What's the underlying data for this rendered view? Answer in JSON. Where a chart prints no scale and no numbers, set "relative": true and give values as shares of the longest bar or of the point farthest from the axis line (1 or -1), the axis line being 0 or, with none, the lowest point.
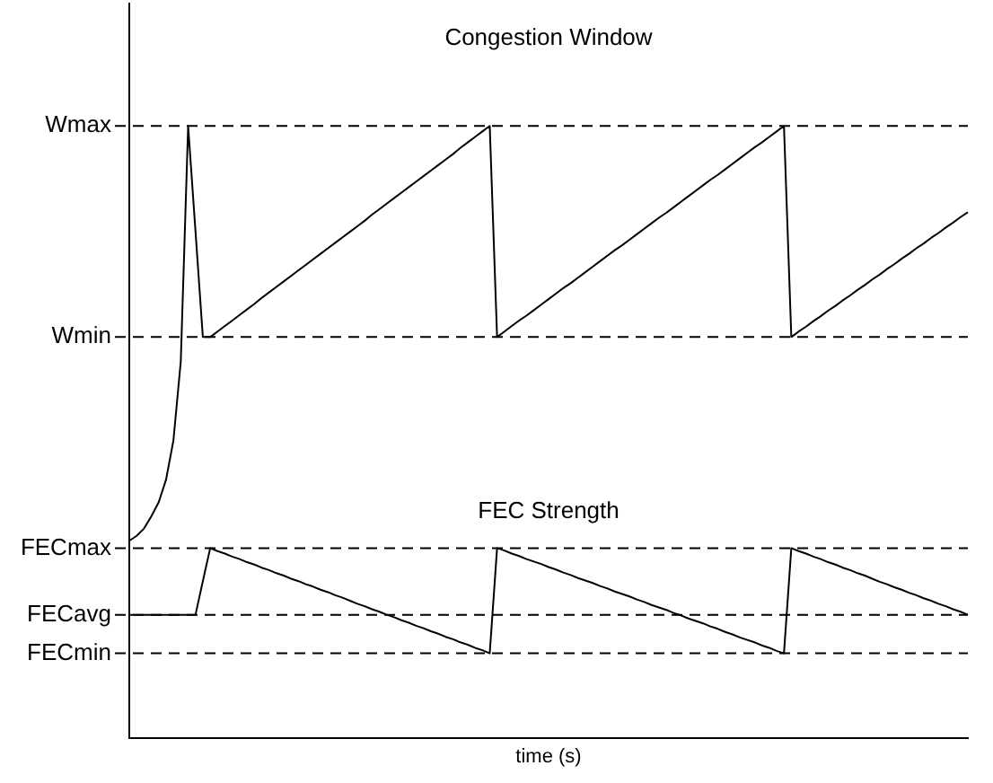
{
  "chart_data": {
    "type": "line",
    "relative": true,
    "title": "Congestion Window",
    "annotations": [
      "FEC Strength"
    ],
    "xlabel": "time (s)",
    "legend": false,
    "grid": false,
    "marker": "none",
    "line_style": "solid",
    "tick_labels": false,
    "categories": [
      null,
      null,
      null,
      null,
      null,
      null,
      null,
      null,
      null,
      null,
      null,
      null,
      null,
      null,
      null,
      null,
      null,
      null,
      null,
      null,
      null,
      null,
      null,
      null,
      null,
      null,
      null,
      null,
      null,
      null,
      null,
      null,
      null,
      null,
      null,
      null,
      null,
      null,
      null,
      null,
      null,
      null,
      null,
      null,
      null,
      null,
      null,
      null,
      null,
      null,
      null,
      null,
      null,
      null,
      null,
      null,
      null,
      null,
      null,
      null,
      null,
      null,
      null,
      null,
      null,
      null,
      null,
      null,
      null,
      null,
      null,
      null,
      null,
      null,
      null,
      null,
      null,
      null,
      null,
      null,
      null,
      null,
      null,
      null,
      null,
      null,
      null,
      null,
      null,
      null,
      null,
      null,
      null,
      null,
      null,
      null,
      null,
      null,
      null,
      null,
      null,
      null,
      null,
      null,
      null,
      null,
      null,
      null,
      null,
      null,
      null,
      null,
      null,
      null,
      null
    ],
    "series": [
      {
        "color": "#000000",
        "values": [
          0.322,
          0.33,
          0.342,
          0.362,
          0.385,
          0.422,
          0.486,
          0.615,
          1,
          0.828,
          0.655,
          0.655,
          0.664,
          0.673,
          0.682,
          0.691,
          0.7,
          0.709,
          0.719,
          0.728,
          0.737,
          0.746,
          0.755,
          0.764,
          0.773,
          0.782,
          0.791,
          0.8,
          0.809,
          0.818,
          0.827,
          0.836,
          0.845,
          0.855,
          0.864,
          0.873,
          0.882,
          0.891,
          0.9,
          0.909,
          0.918,
          0.927,
          0.936,
          0.945,
          0.954,
          0.964,
          0.973,
          0.982,
          0.991,
          1,
          0.655,
          0.664,
          0.673,
          0.682,
          0.69,
          0.699,
          0.708,
          0.717,
          0.726,
          0.735,
          0.743,
          0.752,
          0.761,
          0.77,
          0.779,
          0.788,
          0.797,
          0.805,
          0.814,
          0.823,
          0.832,
          0.841,
          0.85,
          0.858,
          0.867,
          0.876,
          0.885,
          0.894,
          0.903,
          0.912,
          0.92,
          0.929,
          0.938,
          0.947,
          0.956,
          0.965,
          0.973,
          0.982,
          0.991,
          1,
          0.655,
          0.664,
          0.672,
          0.681,
          0.689,
          0.698,
          0.706,
          0.715,
          0.723,
          0.732,
          0.74,
          0.749,
          0.757,
          0.766,
          0.774,
          0.783,
          0.791,
          0.8,
          0.808,
          0.817,
          0.825,
          0.834,
          0.842,
          0.851,
          0.859
        ]
      },
      {
        "color": "#000000",
        "values": [
          0.201,
          0.201,
          0.201,
          0.201,
          0.201,
          0.201,
          0.201,
          0.201,
          0.201,
          0.201,
          0.256,
          0.31,
          0.305,
          0.301,
          0.296,
          0.292,
          0.287,
          0.283,
          0.278,
          0.274,
          0.269,
          0.265,
          0.26,
          0.256,
          0.251,
          0.247,
          0.242,
          0.238,
          0.233,
          0.229,
          0.224,
          0.219,
          0.215,
          0.21,
          0.206,
          0.201,
          0.197,
          0.192,
          0.188,
          0.183,
          0.179,
          0.174,
          0.17,
          0.165,
          0.161,
          0.156,
          0.152,
          0.147,
          0.143,
          0.138,
          0.31,
          0.306,
          0.301,
          0.297,
          0.292,
          0.288,
          0.284,
          0.279,
          0.275,
          0.27,
          0.266,
          0.261,
          0.257,
          0.253,
          0.248,
          0.244,
          0.239,
          0.235,
          0.231,
          0.226,
          0.222,
          0.217,
          0.213,
          0.209,
          0.204,
          0.2,
          0.195,
          0.191,
          0.187,
          0.182,
          0.178,
          0.173,
          0.169,
          0.164,
          0.16,
          0.156,
          0.151,
          0.147,
          0.142,
          0.138,
          0.31,
          0.305,
          0.301,
          0.296,
          0.292,
          0.287,
          0.283,
          0.278,
          0.274,
          0.269,
          0.265,
          0.26,
          0.255,
          0.251,
          0.246,
          0.242,
          0.237,
          0.233,
          0.228,
          0.224,
          0.219,
          0.215,
          0.21,
          0.206,
          0.201
        ]
      }
    ],
    "ref_lines": [
      {
        "axis": "y",
        "value": 1,
        "label": "Wmax",
        "color": "#000000",
        "line_style": "dashed"
      },
      {
        "axis": "y",
        "value": 0.655,
        "label": "Wmin",
        "color": "#000000",
        "line_style": "dashed"
      },
      {
        "axis": "y",
        "value": 0.31,
        "label": "FECmax",
        "color": "#000000",
        "line_style": "dashed"
      },
      {
        "axis": "y",
        "value": 0.201,
        "label": "FECavg",
        "color": "#000000",
        "line_style": "dashed"
      },
      {
        "axis": "y",
        "value": 0.138,
        "label": "FECmin",
        "color": "#000000",
        "line_style": "dashed"
      }
    ]
  }
}
